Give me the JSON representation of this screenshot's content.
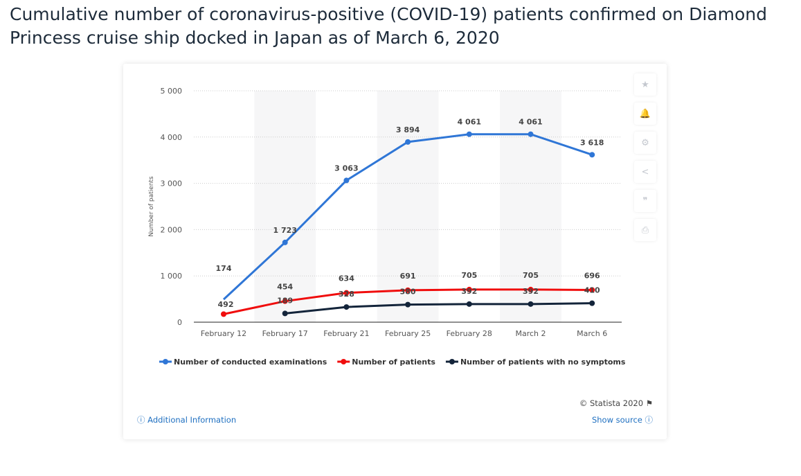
{
  "title": "Cumulative number of coronavirus-positive (COVID-19) patients confirmed on Diamond Princess cruise ship docked in Japan as of March 6, 2020",
  "toolbar": [
    {
      "icon": "star-icon",
      "glyph": "★"
    },
    {
      "icon": "bell-icon",
      "glyph": "🔔"
    },
    {
      "icon": "gear-icon",
      "glyph": "⚙"
    },
    {
      "icon": "share-icon",
      "glyph": "<"
    },
    {
      "icon": "quote-icon",
      "glyph": "❞"
    },
    {
      "icon": "print-icon",
      "glyph": "⎙"
    }
  ],
  "footer": {
    "additional": "Additional Information",
    "show_source": "Show source",
    "copyright": "© Statista 2020"
  },
  "chart_data": {
    "type": "line",
    "categories": [
      "February 12",
      "February 17",
      "February 21",
      "February 25",
      "February 28",
      "March 2",
      "March 6"
    ],
    "ylabel": "Number of patients",
    "ylim": [
      0,
      5000
    ],
    "yticks": [
      0,
      1000,
      2000,
      3000,
      4000,
      5000
    ],
    "ytick_labels": [
      "0",
      "1 000",
      "2 000",
      "3 000",
      "4 000",
      "5 000"
    ],
    "grid": true,
    "legend": "bottom",
    "series": [
      {
        "name": "Number of conducted examinations",
        "color": "#2f76d6",
        "values": [
          492,
          1723,
          3063,
          3894,
          4061,
          4061,
          3618
        ],
        "labels": [
          "492",
          "1 723",
          "3 063",
          "3 894",
          "4 061",
          "4 061",
          "3 618"
        ]
      },
      {
        "name": "Number of patients",
        "color": "#f00d0d",
        "values": [
          174,
          454,
          634,
          691,
          705,
          705,
          696
        ],
        "labels": [
          "174",
          "454",
          "634",
          "691",
          "705",
          "705",
          "696"
        ]
      },
      {
        "name": "Number of patients with no symptoms",
        "color": "#13243a",
        "values": [
          null,
          189,
          328,
          380,
          392,
          392,
          410
        ],
        "labels": [
          "",
          "189",
          "328",
          "380",
          "392",
          "392",
          "410"
        ]
      }
    ]
  }
}
